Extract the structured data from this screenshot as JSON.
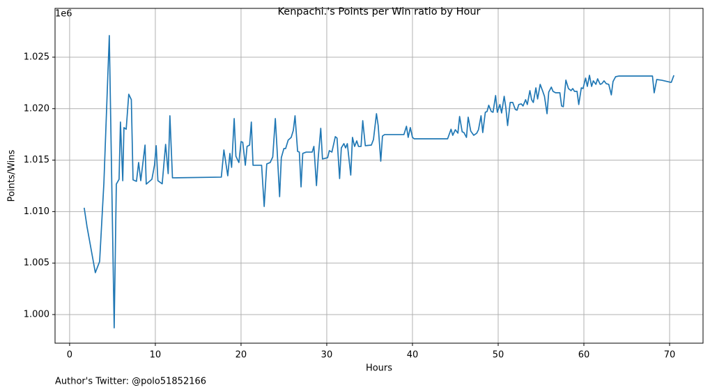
{
  "chart_data": {
    "type": "line",
    "title": "Kenpachi.'s Points per Win ratio by Hour",
    "x_label": "Hours",
    "y_label": "Points/Wins",
    "offset_text": "1e6",
    "footer": "Author's Twitter: @polo51852166",
    "color": "#1f77b4",
    "grid": true,
    "xlim": [
      -1.7,
      73.9
    ],
    "xticks": [
      0,
      10,
      20,
      30,
      40,
      50,
      60,
      70
    ],
    "ylim": [
      997220,
      1029740
    ],
    "yticks": [
      {
        "value": 1000000,
        "label": "1.000"
      },
      {
        "value": 1005000,
        "label": "1.005"
      },
      {
        "value": 1010000,
        "label": "1.010"
      },
      {
        "value": 1015000,
        "label": "1.015"
      },
      {
        "value": 1020000,
        "label": "1.020"
      },
      {
        "value": 1025000,
        "label": "1.025"
      }
    ],
    "x": [
      1.7,
      2.03,
      3.0,
      3.5,
      4.0,
      4.63,
      5.2,
      5.45,
      5.77,
      5.93,
      6.2,
      6.34,
      6.6,
      6.9,
      7.2,
      7.4,
      7.8,
      8.05,
      8.3,
      8.8,
      8.94,
      9.6,
      9.9,
      10.1,
      10.3,
      10.8,
      11.2,
      11.5,
      11.7,
      12.0,
      17.7,
      18.0,
      18.45,
      18.7,
      18.9,
      19.2,
      19.4,
      19.75,
      20.0,
      20.2,
      20.5,
      20.7,
      21.0,
      21.2,
      21.4,
      22.4,
      22.7,
      23.0,
      23.4,
      23.7,
      24.0,
      24.2,
      24.5,
      24.7,
      25.0,
      25.2,
      25.5,
      25.85,
      26.1,
      26.3,
      26.6,
      26.8,
      27.0,
      27.2,
      27.6,
      28.3,
      28.5,
      28.8,
      29.0,
      29.3,
      29.5,
      30.1,
      30.3,
      30.6,
      31.0,
      31.2,
      31.5,
      31.7,
      32.0,
      32.2,
      32.4,
      32.8,
      33.0,
      33.25,
      33.5,
      33.7,
      34.0,
      34.2,
      34.5,
      35.2,
      35.45,
      35.8,
      36.0,
      36.3,
      36.5,
      36.75,
      39.0,
      39.3,
      39.5,
      39.75,
      40.0,
      40.2,
      44.1,
      44.5,
      44.7,
      45.0,
      45.3,
      45.5,
      45.8,
      46.0,
      46.3,
      46.5,
      46.8,
      47.15,
      47.5,
      47.7,
      48.0,
      48.2,
      48.5,
      48.7,
      48.9,
      49.2,
      49.4,
      49.7,
      49.9,
      50.2,
      50.4,
      50.7,
      50.9,
      51.1,
      51.4,
      51.7,
      52.0,
      52.2,
      52.4,
      52.7,
      52.9,
      53.2,
      53.4,
      53.7,
      53.9,
      54.1,
      54.4,
      54.6,
      54.9,
      55.2,
      55.4,
      55.7,
      55.9,
      56.2,
      56.4,
      56.7,
      57.2,
      57.4,
      57.6,
      57.9,
      58.2,
      58.5,
      58.7,
      58.9,
      59.2,
      59.4,
      59.7,
      59.9,
      60.2,
      60.4,
      60.65,
      60.9,
      61.1,
      61.4,
      61.6,
      61.9,
      62.1,
      62.35,
      62.6,
      62.9,
      63.2,
      63.4,
      63.7,
      64.1,
      68.0,
      68.2,
      68.5,
      69.1,
      70.1,
      70.2,
      70.5
    ],
    "values": [
      1010370,
      1008540,
      1004070,
      1005150,
      1012800,
      1027100,
      998710,
      1012670,
      1013140,
      1018700,
      1013000,
      1018160,
      1018000,
      1021400,
      1020870,
      1013080,
      1012940,
      1014770,
      1013000,
      1016460,
      1012670,
      1013140,
      1014500,
      1016400,
      1013000,
      1012700,
      1016530,
      1013690,
      1019310,
      1013280,
      1013350,
      1015990,
      1013480,
      1015650,
      1014300,
      1019040,
      1015380,
      1014770,
      1016800,
      1016730,
      1014500,
      1016330,
      1016460,
      1018700,
      1014500,
      1014500,
      1010500,
      1014630,
      1014770,
      1015310,
      1019040,
      1016120,
      1011450,
      1015240,
      1016120,
      1016120,
      1016940,
      1017210,
      1017890,
      1019310,
      1015850,
      1015780,
      1012400,
      1015650,
      1015780,
      1015780,
      1016330,
      1012530,
      1015180,
      1018090,
      1015110,
      1015240,
      1015920,
      1015780,
      1017280,
      1017140,
      1013210,
      1016190,
      1016600,
      1016190,
      1016600,
      1013550,
      1017210,
      1016330,
      1016870,
      1016330,
      1016330,
      1018830,
      1016400,
      1016460,
      1017000,
      1019510,
      1018360,
      1014900,
      1017340,
      1017480,
      1017480,
      1018290,
      1017210,
      1018160,
      1017210,
      1017070,
      1017070,
      1018000,
      1017410,
      1017950,
      1017620,
      1019240,
      1017750,
      1017680,
      1017210,
      1019170,
      1017820,
      1017410,
      1017620,
      1017950,
      1019310,
      1017680,
      1019650,
      1019720,
      1020330,
      1019720,
      1019650,
      1021270,
      1019650,
      1020400,
      1019580,
      1021200,
      1020060,
      1018360,
      1020600,
      1020600,
      1019920,
      1019850,
      1020400,
      1020460,
      1020260,
      1020870,
      1020400,
      1021750,
      1020870,
      1020600,
      1022020,
      1020940,
      1022360,
      1021680,
      1021200,
      1019510,
      1021610,
      1022090,
      1021680,
      1021540,
      1021540,
      1020260,
      1020190,
      1022770,
      1021950,
      1021750,
      1021950,
      1021680,
      1021680,
      1020400,
      1022020,
      1021950,
      1022970,
      1022160,
      1023240,
      1022160,
      1022700,
      1022360,
      1022900,
      1022360,
      1022430,
      1022700,
      1022430,
      1022360,
      1021340,
      1022630,
      1023100,
      1023170,
      1023170,
      1021540,
      1022830,
      1022760,
      1022560,
      1022560,
      1023240
    ]
  }
}
